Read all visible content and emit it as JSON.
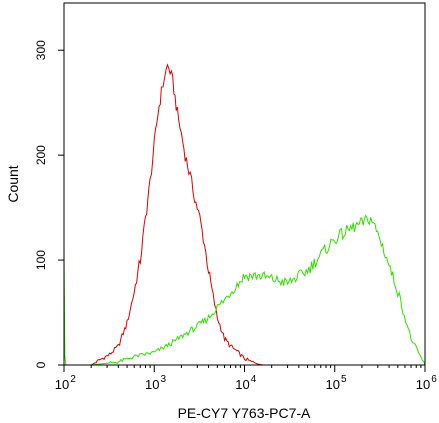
{
  "chart_data": {
    "type": "line",
    "xlabel": "PE-CY7 Y763-PC7-A",
    "ylabel": "Count",
    "x_scale": "log",
    "xlim": [
      100,
      1000000
    ],
    "ylim": [
      0,
      345
    ],
    "x_ticks": [
      {
        "value": 100,
        "base": "10",
        "exp": "2"
      },
      {
        "value": 1000,
        "base": "10",
        "exp": "3"
      },
      {
        "value": 10000,
        "base": "10",
        "exp": "4"
      },
      {
        "value": 100000,
        "base": "10",
        "exp": "5"
      },
      {
        "value": 1000000,
        "base": "10",
        "exp": "6"
      }
    ],
    "y_ticks": [
      {
        "value": 0,
        "label": "0"
      },
      {
        "value": 100,
        "label": "100"
      },
      {
        "value": 200,
        "label": "200"
      },
      {
        "value": 300,
        "label": "300"
      }
    ],
    "grid": false,
    "legend": "none",
    "series": [
      {
        "color": "#dd0000",
        "x": [
          200,
          250,
          320,
          400,
          500,
          600,
          700,
          800,
          900,
          1000,
          1100,
          1200,
          1300,
          1400,
          1500,
          1600,
          1700,
          1800,
          2000,
          2200,
          2500,
          2800,
          3200,
          3600,
          4000,
          4500,
          5000,
          5500,
          6000,
          7000,
          8000,
          9000,
          10000,
          12000,
          14000,
          16000
        ],
        "y": [
          0,
          5,
          10,
          18,
          40,
          70,
          100,
          140,
          175,
          210,
          240,
          260,
          275,
          285,
          280,
          270,
          255,
          240,
          220,
          200,
          180,
          160,
          140,
          115,
          90,
          65,
          45,
          35,
          25,
          18,
          14,
          10,
          6,
          3,
          1,
          0
        ]
      },
      {
        "color": "#33dd00",
        "x": [
          100,
          101,
          102,
          105,
          200,
          400,
          600,
          1000,
          1500,
          2000,
          3000,
          4000,
          5000,
          6000,
          8000,
          10000,
          15000,
          20000,
          30000,
          50000,
          70000,
          100000,
          150000,
          200000,
          250000,
          300000,
          350000,
          400000,
          500000,
          700000,
          1000000
        ],
        "y": [
          115,
          60,
          10,
          0,
          0,
          3,
          8,
          12,
          20,
          27,
          37,
          45,
          55,
          62,
          75,
          85,
          85,
          82,
          78,
          90,
          105,
          120,
          130,
          135,
          140,
          125,
          110,
          95,
          70,
          25,
          0
        ]
      }
    ]
  }
}
